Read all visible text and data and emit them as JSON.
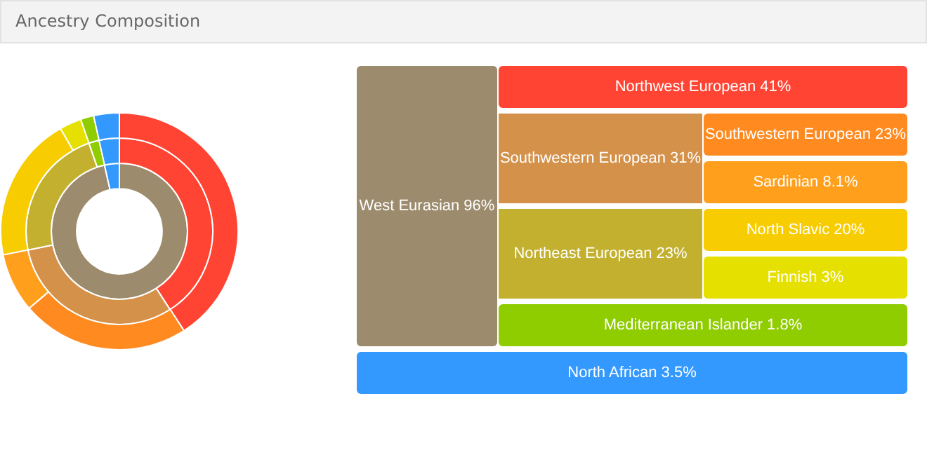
{
  "chart_data": {
    "type": "donut",
    "title": "Ancestry Composition",
    "categories": [
      "West Eurasian",
      "Northwest European",
      "Southwestern European",
      "Southwestern European",
      "Sardinian",
      "Northeast European",
      "North Slavic",
      "Finnish",
      "Mediterranean Islander",
      "North African"
    ],
    "colors": [
      "#9c8b6c",
      "#ff4433",
      "#d4914a",
      "#ff8a1f",
      "#ff9f1c",
      "#c2b02e",
      "#f7cc00",
      "#e6e000",
      "#8fcc00",
      "#3399ff"
    ],
    "value_labels": [
      "96%",
      "41%",
      "31%",
      "23%",
      "8.1%",
      "23%",
      "20%",
      "3%",
      "1.8%",
      "3.5%"
    ],
    "series": [
      {
        "values": [
          96,
          null,
          null,
          null,
          null,
          null,
          null,
          null,
          null,
          3.5
        ]
      },
      {
        "values": [
          null,
          41,
          31,
          null,
          null,
          23,
          null,
          null,
          1.8,
          3.5
        ]
      },
      {
        "values": [
          null,
          41,
          null,
          23,
          8.1,
          null,
          20,
          3,
          1.8,
          3.5
        ]
      }
    ],
    "legend": false
  }
}
